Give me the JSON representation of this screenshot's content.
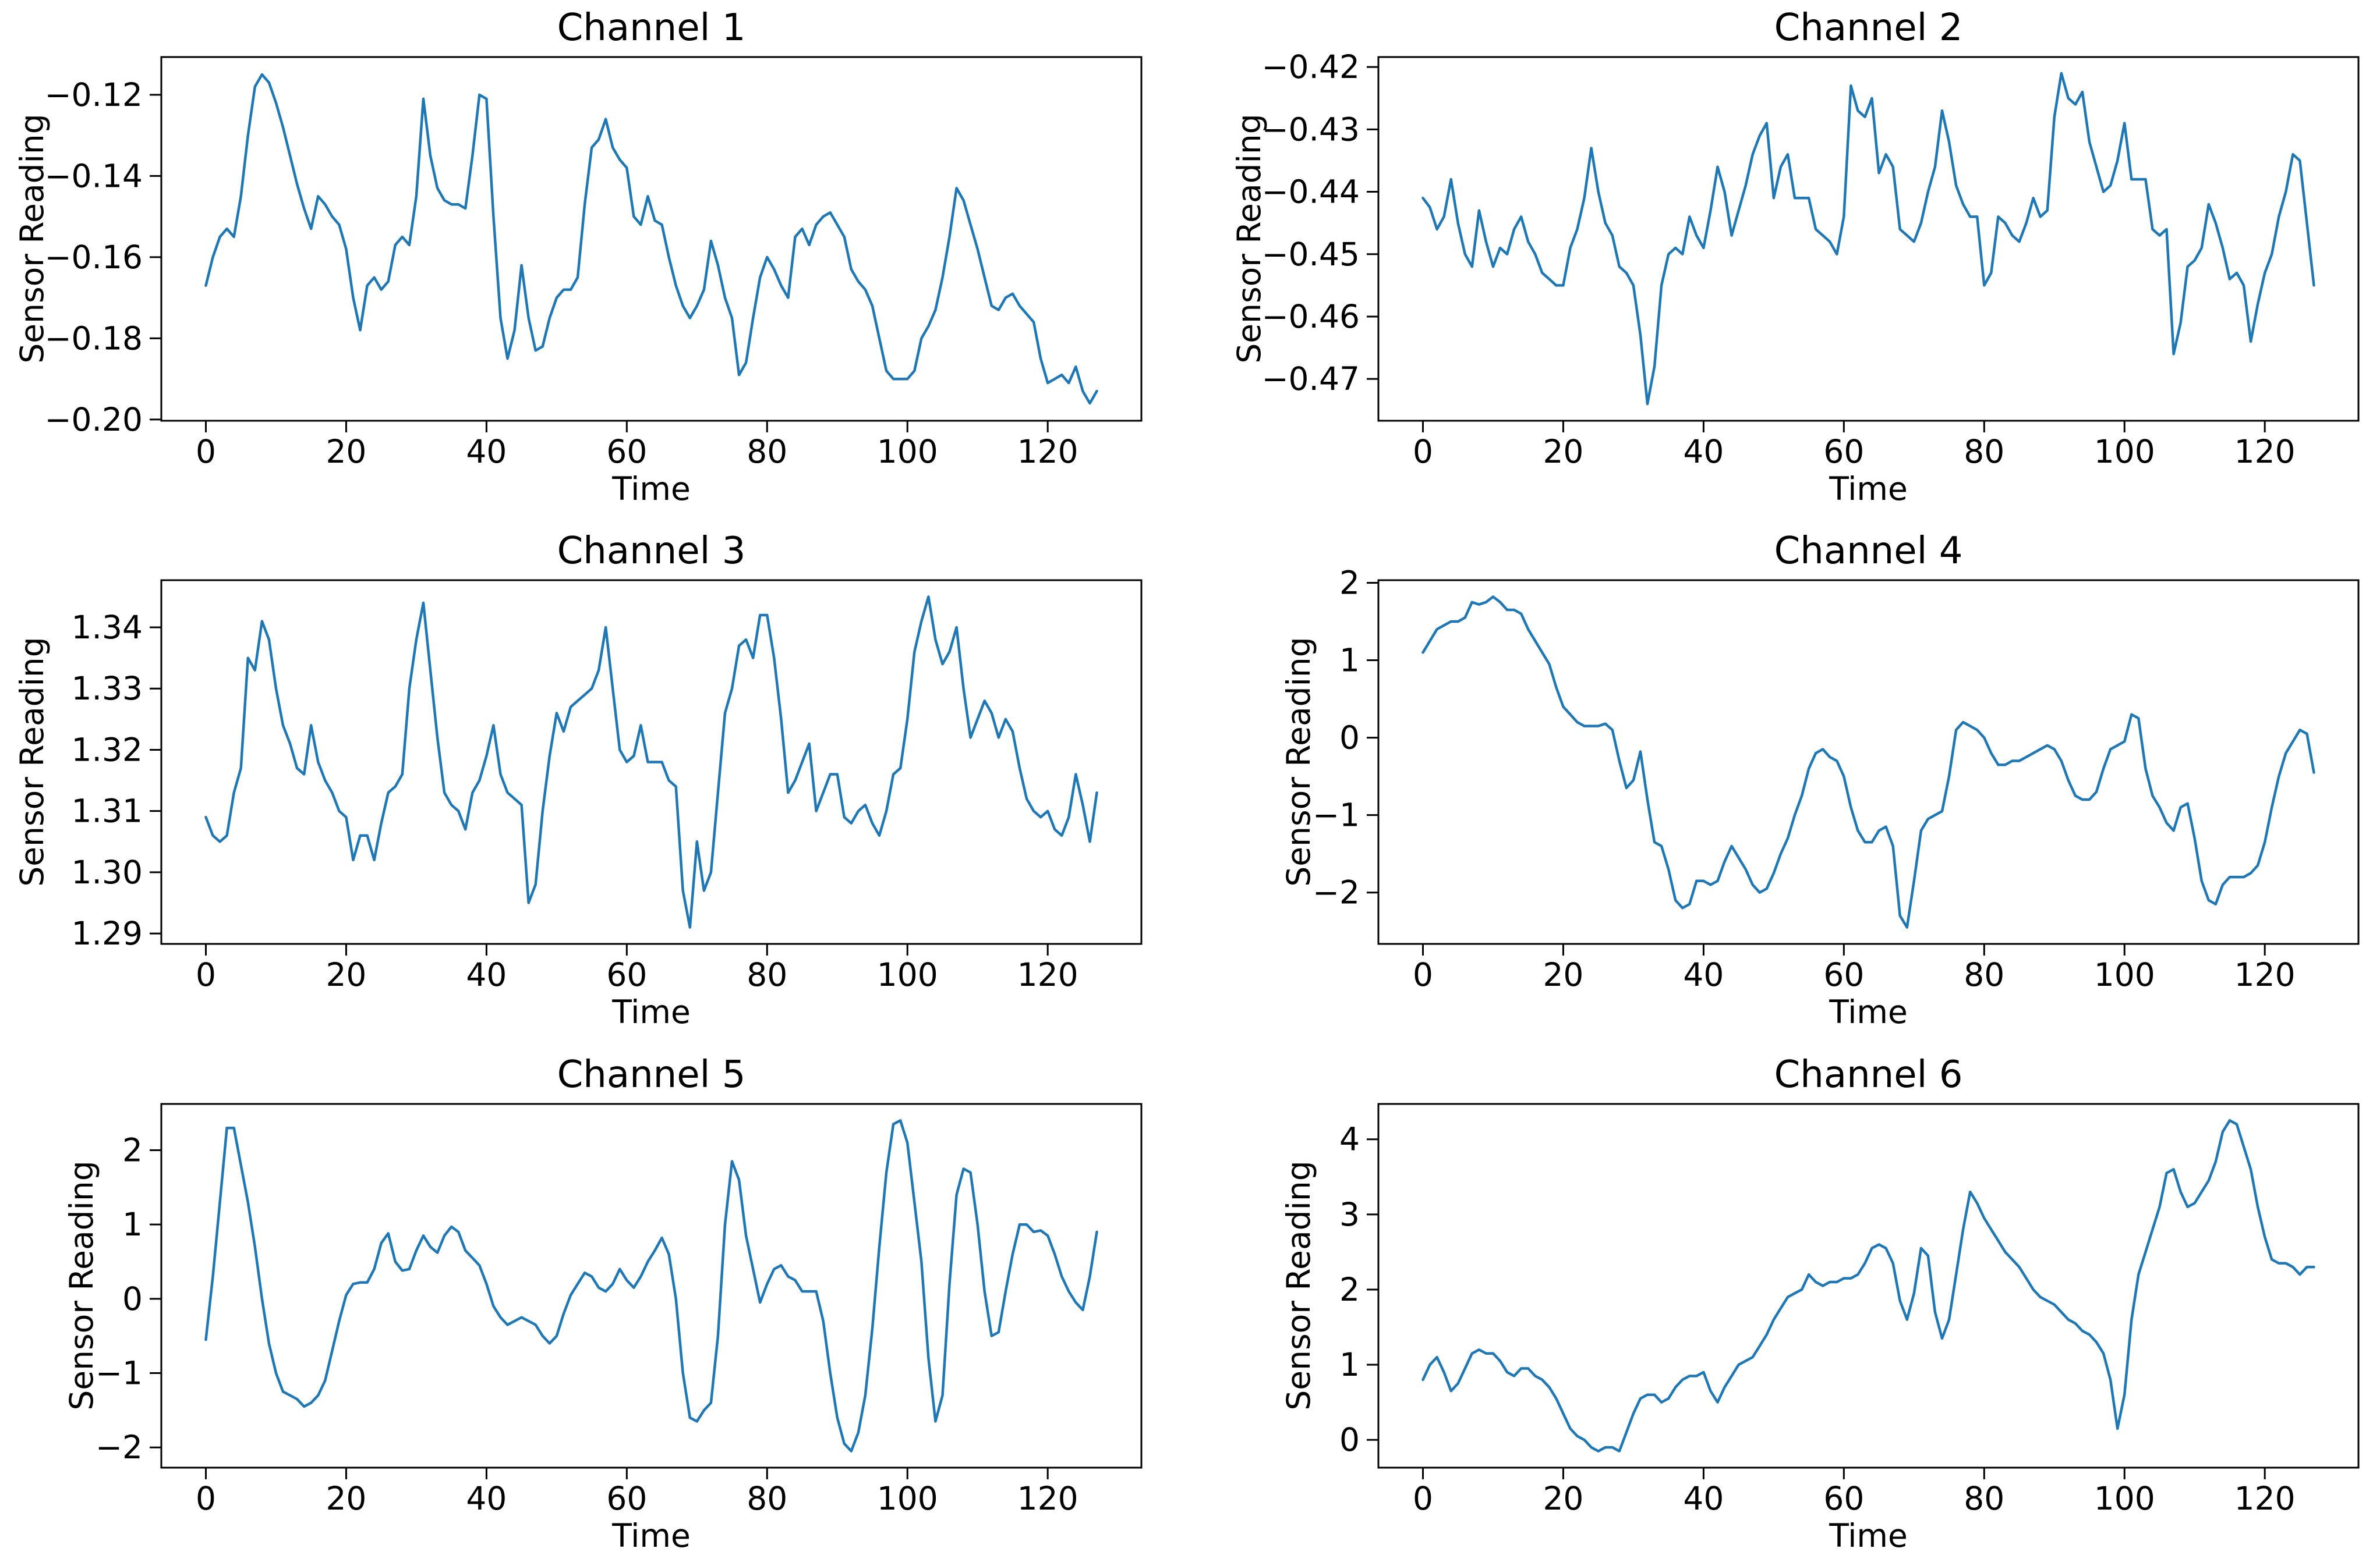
{
  "figure": {
    "background": "#ffffff",
    "line_color": "#1f77b4",
    "spine_color": "#000000",
    "text_color": "#000000"
  },
  "chart_data": [
    {
      "type": "line",
      "title": "Channel 1",
      "xlabel": "Time",
      "ylabel": "Sensor Reading",
      "xlim": [
        -6.35,
        133.35
      ],
      "ylim": [
        -0.2003,
        -0.1107
      ],
      "xticks": [
        0,
        20,
        40,
        60,
        80,
        100,
        120
      ],
      "xtick_labels": [
        "0",
        "20",
        "40",
        "60",
        "80",
        "100",
        "120"
      ],
      "yticks": [
        -0.12,
        -0.14,
        -0.16,
        -0.18,
        -0.2
      ],
      "ytick_labels": [
        "−0.12",
        "−0.14",
        "−0.16",
        "−0.18",
        "−0.20"
      ],
      "grid": false,
      "legend": null,
      "values": [
        -0.167,
        -0.16,
        -0.155,
        -0.153,
        -0.155,
        -0.145,
        -0.13,
        -0.118,
        -0.115,
        -0.117,
        -0.122,
        -0.128,
        -0.135,
        -0.142,
        -0.148,
        -0.153,
        -0.145,
        -0.147,
        -0.15,
        -0.152,
        -0.158,
        -0.17,
        -0.178,
        -0.167,
        -0.165,
        -0.168,
        -0.166,
        -0.157,
        -0.155,
        -0.157,
        -0.145,
        -0.121,
        -0.135,
        -0.143,
        -0.146,
        -0.147,
        -0.147,
        -0.148,
        -0.135,
        -0.12,
        -0.121,
        -0.15,
        -0.175,
        -0.185,
        -0.178,
        -0.162,
        -0.175,
        -0.183,
        -0.182,
        -0.175,
        -0.17,
        -0.168,
        -0.168,
        -0.165,
        -0.147,
        -0.133,
        -0.131,
        -0.126,
        -0.133,
        -0.136,
        -0.138,
        -0.15,
        -0.152,
        -0.145,
        -0.151,
        -0.152,
        -0.16,
        -0.167,
        -0.172,
        -0.175,
        -0.172,
        -0.168,
        -0.156,
        -0.162,
        -0.17,
        -0.175,
        -0.189,
        -0.186,
        -0.175,
        -0.165,
        -0.16,
        -0.163,
        -0.167,
        -0.17,
        -0.155,
        -0.153,
        -0.157,
        -0.152,
        -0.15,
        -0.149,
        -0.152,
        -0.155,
        -0.163,
        -0.166,
        -0.168,
        -0.172,
        -0.18,
        -0.188,
        -0.19,
        -0.19,
        -0.19,
        -0.188,
        -0.18,
        -0.177,
        -0.173,
        -0.165,
        -0.155,
        -0.143,
        -0.146,
        -0.152,
        -0.158,
        -0.165,
        -0.172,
        -0.173,
        -0.17,
        -0.169,
        -0.172,
        -0.174,
        -0.176,
        -0.185,
        -0.191,
        -0.19,
        -0.189,
        -0.191,
        -0.187,
        -0.193,
        -0.196,
        -0.193
      ]
    },
    {
      "type": "line",
      "title": "Channel 2",
      "xlabel": "Time",
      "ylabel": "Sensor Reading",
      "xlim": [
        -6.35,
        133.35
      ],
      "ylim": [
        -0.4767,
        -0.4184
      ],
      "xticks": [
        0,
        20,
        40,
        60,
        80,
        100,
        120
      ],
      "xtick_labels": [
        "0",
        "20",
        "40",
        "60",
        "80",
        "100",
        "120"
      ],
      "yticks": [
        -0.42,
        -0.43,
        -0.44,
        -0.45,
        -0.46,
        -0.47
      ],
      "ytick_labels": [
        "−0.42",
        "−0.43",
        "−0.44",
        "−0.45",
        "−0.46",
        "−0.47"
      ],
      "grid": false,
      "legend": null,
      "values": [
        -0.441,
        -0.4425,
        -0.446,
        -0.444,
        -0.438,
        -0.445,
        -0.45,
        -0.452,
        -0.443,
        -0.448,
        -0.452,
        -0.449,
        -0.45,
        -0.446,
        -0.444,
        -0.448,
        -0.45,
        -0.453,
        -0.454,
        -0.455,
        -0.455,
        -0.449,
        -0.446,
        -0.441,
        -0.433,
        -0.44,
        -0.445,
        -0.447,
        -0.452,
        -0.453,
        -0.455,
        -0.463,
        -0.474,
        -0.468,
        -0.455,
        -0.45,
        -0.449,
        -0.45,
        -0.444,
        -0.447,
        -0.449,
        -0.443,
        -0.436,
        -0.44,
        -0.447,
        -0.443,
        -0.439,
        -0.434,
        -0.431,
        -0.429,
        -0.441,
        -0.436,
        -0.434,
        -0.441,
        -0.441,
        -0.441,
        -0.446,
        -0.447,
        -0.448,
        -0.45,
        -0.444,
        -0.423,
        -0.427,
        -0.428,
        -0.425,
        -0.437,
        -0.434,
        -0.436,
        -0.446,
        -0.447,
        -0.448,
        -0.445,
        -0.44,
        -0.436,
        -0.427,
        -0.432,
        -0.439,
        -0.442,
        -0.444,
        -0.444,
        -0.455,
        -0.453,
        -0.444,
        -0.445,
        -0.447,
        -0.448,
        -0.445,
        -0.441,
        -0.444,
        -0.443,
        -0.428,
        -0.421,
        -0.425,
        -0.426,
        -0.424,
        -0.432,
        -0.436,
        -0.44,
        -0.439,
        -0.435,
        -0.429,
        -0.438,
        -0.438,
        -0.438,
        -0.446,
        -0.447,
        -0.446,
        -0.466,
        -0.461,
        -0.452,
        -0.451,
        -0.449,
        -0.442,
        -0.445,
        -0.449,
        -0.454,
        -0.453,
        -0.455,
        -0.464,
        -0.458,
        -0.453,
        -0.45,
        -0.444,
        -0.44,
        -0.434,
        -0.435,
        -0.445,
        -0.455
      ]
    },
    {
      "type": "line",
      "title": "Channel 3",
      "xlabel": "Time",
      "ylabel": "Sensor Reading",
      "xlim": [
        -6.35,
        133.35
      ],
      "ylim": [
        1.2883,
        1.3477
      ],
      "xticks": [
        0,
        20,
        40,
        60,
        80,
        100,
        120
      ],
      "xtick_labels": [
        "0",
        "20",
        "40",
        "60",
        "80",
        "100",
        "120"
      ],
      "yticks": [
        1.29,
        1.3,
        1.31,
        1.32,
        1.33,
        1.34
      ],
      "ytick_labels": [
        "1.29",
        "1.30",
        "1.31",
        "1.32",
        "1.33",
        "1.34"
      ],
      "grid": false,
      "legend": null,
      "values": [
        1.309,
        1.306,
        1.305,
        1.306,
        1.313,
        1.317,
        1.335,
        1.333,
        1.341,
        1.338,
        1.33,
        1.324,
        1.321,
        1.317,
        1.316,
        1.324,
        1.318,
        1.315,
        1.313,
        1.31,
        1.309,
        1.302,
        1.306,
        1.306,
        1.302,
        1.308,
        1.313,
        1.314,
        1.316,
        1.33,
        1.338,
        1.344,
        1.333,
        1.322,
        1.313,
        1.311,
        1.31,
        1.307,
        1.313,
        1.315,
        1.319,
        1.324,
        1.316,
        1.313,
        1.312,
        1.311,
        1.295,
        1.298,
        1.31,
        1.319,
        1.326,
        1.323,
        1.327,
        1.328,
        1.329,
        1.33,
        1.333,
        1.34,
        1.33,
        1.32,
        1.318,
        1.319,
        1.324,
        1.318,
        1.318,
        1.318,
        1.315,
        1.314,
        1.297,
        1.291,
        1.305,
        1.297,
        1.3,
        1.313,
        1.326,
        1.33,
        1.337,
        1.338,
        1.335,
        1.342,
        1.342,
        1.335,
        1.325,
        1.313,
        1.315,
        1.318,
        1.321,
        1.31,
        1.313,
        1.316,
        1.316,
        1.309,
        1.308,
        1.31,
        1.311,
        1.308,
        1.306,
        1.31,
        1.316,
        1.317,
        1.325,
        1.336,
        1.341,
        1.345,
        1.338,
        1.334,
        1.336,
        1.34,
        1.33,
        1.322,
        1.325,
        1.328,
        1.326,
        1.322,
        1.325,
        1.323,
        1.317,
        1.312,
        1.31,
        1.309,
        1.31,
        1.307,
        1.306,
        1.309,
        1.316,
        1.311,
        1.305,
        1.313
      ]
    },
    {
      "type": "line",
      "title": "Channel 4",
      "xlabel": "Time",
      "ylabel": "Sensor Reading",
      "xlim": [
        -6.35,
        133.35
      ],
      "ylim": [
        -2.6635,
        2.0335
      ],
      "xticks": [
        0,
        20,
        40,
        60,
        80,
        100,
        120
      ],
      "xtick_labels": [
        "0",
        "20",
        "40",
        "60",
        "80",
        "100",
        "120"
      ],
      "yticks": [
        -2,
        -1,
        0,
        1,
        2
      ],
      "ytick_labels": [
        "−2",
        "−1",
        "0",
        "1",
        "2"
      ],
      "grid": false,
      "legend": null,
      "values": [
        1.1,
        1.25,
        1.4,
        1.45,
        1.5,
        1.5,
        1.55,
        1.75,
        1.72,
        1.75,
        1.82,
        1.75,
        1.65,
        1.65,
        1.6,
        1.4,
        1.25,
        1.1,
        0.95,
        0.65,
        0.4,
        0.3,
        0.2,
        0.15,
        0.15,
        0.15,
        0.18,
        0.1,
        -0.3,
        -0.65,
        -0.55,
        -0.18,
        -0.8,
        -1.35,
        -1.4,
        -1.7,
        -2.1,
        -2.2,
        -2.15,
        -1.85,
        -1.85,
        -1.9,
        -1.85,
        -1.6,
        -1.4,
        -1.55,
        -1.7,
        -1.9,
        -2.0,
        -1.95,
        -1.75,
        -1.5,
        -1.3,
        -1.0,
        -0.75,
        -0.4,
        -0.2,
        -0.15,
        -0.25,
        -0.3,
        -0.5,
        -0.9,
        -1.2,
        -1.35,
        -1.35,
        -1.2,
        -1.15,
        -1.4,
        -2.3,
        -2.45,
        -1.85,
        -1.2,
        -1.05,
        -1.0,
        -0.95,
        -0.5,
        0.1,
        0.2,
        0.15,
        0.1,
        0.0,
        -0.2,
        -0.35,
        -0.35,
        -0.3,
        -0.3,
        -0.25,
        -0.2,
        -0.15,
        -0.1,
        -0.15,
        -0.3,
        -0.55,
        -0.75,
        -0.8,
        -0.8,
        -0.7,
        -0.4,
        -0.15,
        -0.1,
        -0.05,
        0.3,
        0.25,
        -0.4,
        -0.75,
        -0.9,
        -1.1,
        -1.2,
        -0.9,
        -0.85,
        -1.3,
        -1.85,
        -2.1,
        -2.15,
        -1.9,
        -1.8,
        -1.8,
        -1.8,
        -1.75,
        -1.65,
        -1.35,
        -0.9,
        -0.5,
        -0.2,
        -0.05,
        0.1,
        0.05,
        -0.45
      ]
    },
    {
      "type": "line",
      "title": "Channel 5",
      "xlabel": "Time",
      "ylabel": "Sensor Reading",
      "xlim": [
        -6.35,
        133.35
      ],
      "ylim": [
        -2.2725,
        2.6225
      ],
      "xticks": [
        0,
        20,
        40,
        60,
        80,
        100,
        120
      ],
      "xtick_labels": [
        "0",
        "20",
        "40",
        "60",
        "80",
        "100",
        "120"
      ],
      "yticks": [
        -2,
        -1,
        0,
        1,
        2
      ],
      "ytick_labels": [
        "−2",
        "−1",
        "0",
        "1",
        "2"
      ],
      "grid": false,
      "legend": null,
      "values": [
        -0.55,
        0.3,
        1.3,
        2.3,
        2.3,
        1.8,
        1.3,
        0.7,
        0.0,
        -0.6,
        -1.0,
        -1.25,
        -1.3,
        -1.35,
        -1.45,
        -1.4,
        -1.3,
        -1.1,
        -0.7,
        -0.3,
        0.05,
        0.2,
        0.22,
        0.22,
        0.4,
        0.75,
        0.88,
        0.5,
        0.38,
        0.4,
        0.65,
        0.85,
        0.7,
        0.62,
        0.85,
        0.97,
        0.9,
        0.65,
        0.55,
        0.45,
        0.2,
        -0.1,
        -0.25,
        -0.35,
        -0.3,
        -0.25,
        -0.3,
        -0.35,
        -0.5,
        -0.6,
        -0.5,
        -0.2,
        0.05,
        0.2,
        0.35,
        0.3,
        0.15,
        0.1,
        0.2,
        0.4,
        0.25,
        0.15,
        0.3,
        0.5,
        0.65,
        0.82,
        0.6,
        0.0,
        -1.0,
        -1.6,
        -1.65,
        -1.5,
        -1.4,
        -0.5,
        1.0,
        1.85,
        1.6,
        0.85,
        0.4,
        -0.05,
        0.2,
        0.4,
        0.45,
        0.3,
        0.25,
        0.1,
        0.1,
        0.1,
        -0.3,
        -1.0,
        -1.6,
        -1.95,
        -2.05,
        -1.8,
        -1.3,
        -0.4,
        0.7,
        1.7,
        2.35,
        2.4,
        2.1,
        1.3,
        0.5,
        -0.8,
        -1.65,
        -1.3,
        0.2,
        1.4,
        1.75,
        1.7,
        1.0,
        0.1,
        -0.5,
        -0.45,
        0.1,
        0.6,
        1.0,
        1.0,
        0.9,
        0.92,
        0.85,
        0.6,
        0.3,
        0.1,
        -0.05,
        -0.15,
        0.3,
        0.9
      ]
    },
    {
      "type": "line",
      "title": "Channel 6",
      "xlabel": "Time",
      "ylabel": "Sensor Reading",
      "xlim": [
        -6.35,
        133.35
      ],
      "ylim": [
        -0.37,
        4.47
      ],
      "xticks": [
        0,
        20,
        40,
        60,
        80,
        100,
        120
      ],
      "xtick_labels": [
        "0",
        "20",
        "40",
        "60",
        "80",
        "100",
        "120"
      ],
      "yticks": [
        0,
        1,
        2,
        3,
        4
      ],
      "ytick_labels": [
        "0",
        "1",
        "2",
        "3",
        "4"
      ],
      "grid": false,
      "legend": null,
      "values": [
        0.8,
        1.0,
        1.1,
        0.9,
        0.65,
        0.75,
        0.95,
        1.15,
        1.2,
        1.15,
        1.15,
        1.05,
        0.9,
        0.85,
        0.95,
        0.95,
        0.85,
        0.8,
        0.7,
        0.55,
        0.35,
        0.15,
        0.05,
        0.0,
        -0.1,
        -0.15,
        -0.1,
        -0.1,
        -0.15,
        0.1,
        0.35,
        0.55,
        0.6,
        0.6,
        0.5,
        0.55,
        0.7,
        0.8,
        0.85,
        0.85,
        0.9,
        0.65,
        0.5,
        0.7,
        0.85,
        1.0,
        1.05,
        1.1,
        1.25,
        1.4,
        1.6,
        1.75,
        1.9,
        1.95,
        2.0,
        2.2,
        2.1,
        2.05,
        2.1,
        2.1,
        2.15,
        2.15,
        2.2,
        2.35,
        2.55,
        2.6,
        2.55,
        2.35,
        1.85,
        1.6,
        1.95,
        2.55,
        2.45,
        1.7,
        1.35,
        1.6,
        2.2,
        2.8,
        3.3,
        3.15,
        2.95,
        2.8,
        2.65,
        2.5,
        2.4,
        2.3,
        2.15,
        2.0,
        1.9,
        1.85,
        1.8,
        1.7,
        1.6,
        1.55,
        1.45,
        1.4,
        1.3,
        1.15,
        0.8,
        0.15,
        0.6,
        1.6,
        2.2,
        2.5,
        2.8,
        3.1,
        3.55,
        3.6,
        3.3,
        3.1,
        3.15,
        3.3,
        3.45,
        3.7,
        4.1,
        4.25,
        4.2,
        3.9,
        3.6,
        3.1,
        2.7,
        2.4,
        2.35,
        2.35,
        2.3,
        2.2,
        2.3,
        2.3
      ]
    }
  ]
}
